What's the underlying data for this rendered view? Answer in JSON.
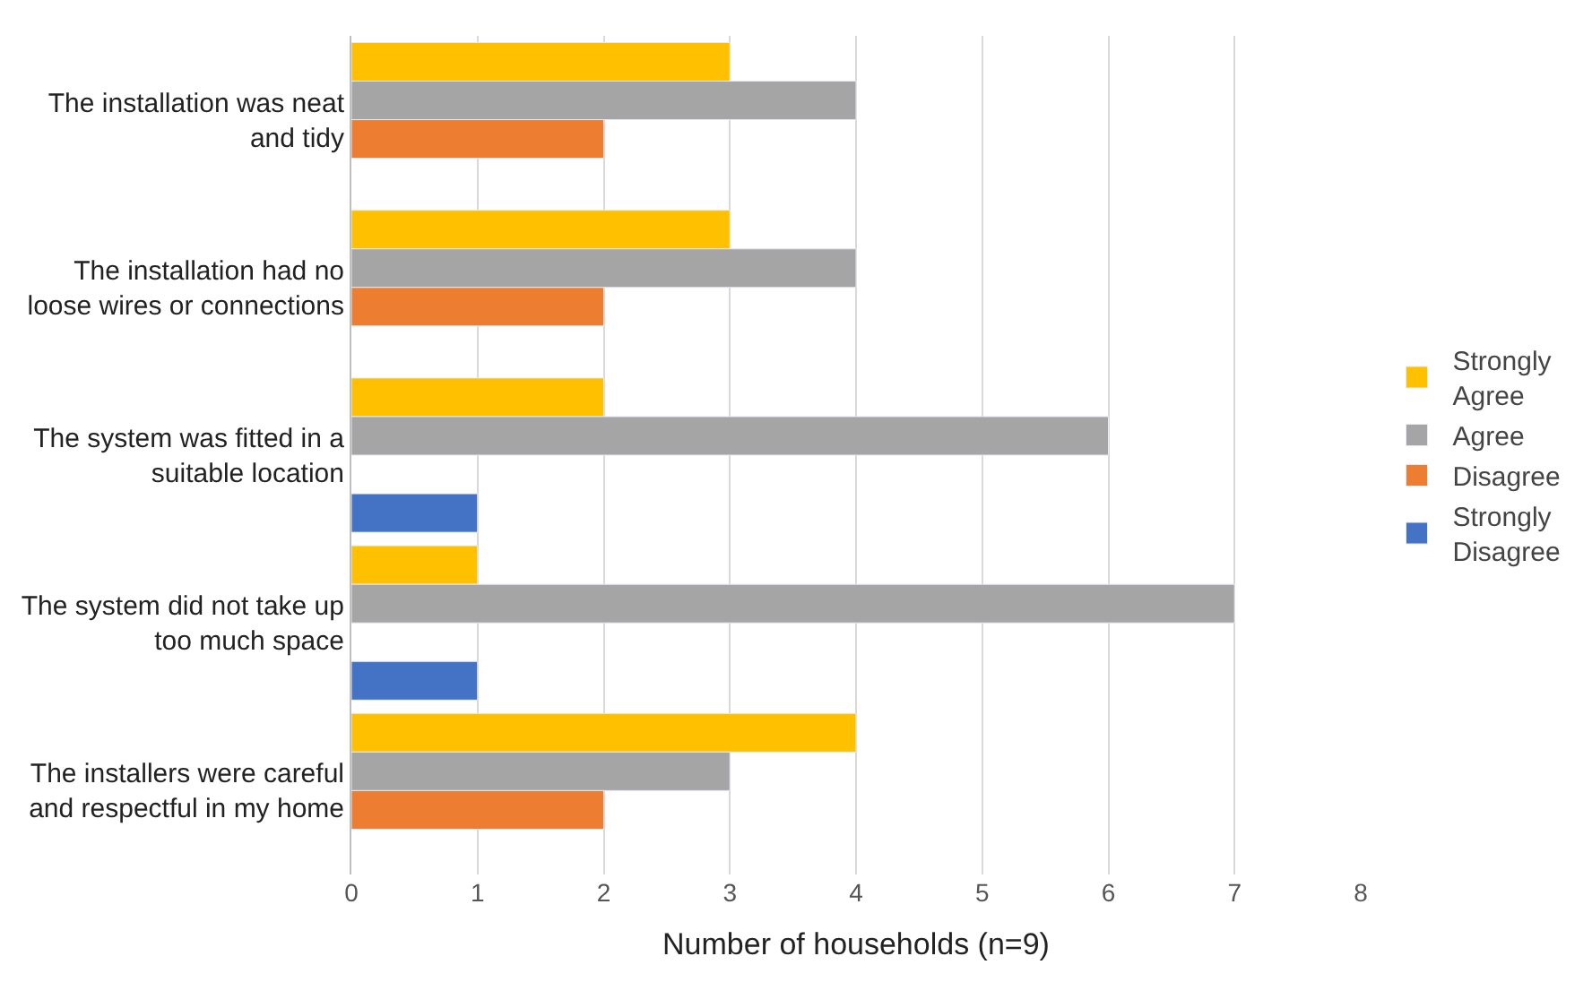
{
  "chart_data": {
    "type": "bar",
    "orientation": "horizontal",
    "xlabel": "Number of households (n=9)",
    "categories": [
      "The installation was neat and tidy",
      "The installation had no loose wires or connections",
      "The system was fitted in a suitable location",
      "The system did not take up too much space",
      "The installers were careful and respectful in my home"
    ],
    "series": [
      {
        "name": "Strongly Agree",
        "color": "#ffc000",
        "values": [
          3,
          3,
          2,
          1,
          4
        ]
      },
      {
        "name": "Agree",
        "color": "#a5a5a5",
        "values": [
          4,
          4,
          6,
          7,
          3
        ]
      },
      {
        "name": "Disagree",
        "color": "#ed7d31",
        "values": [
          2,
          2,
          null,
          null,
          2
        ]
      },
      {
        "name": "Strongly Disagree",
        "color": "#4472c4",
        "values": [
          null,
          null,
          1,
          1,
          null
        ]
      }
    ],
    "xlim": [
      0,
      8
    ],
    "xticks": [
      0,
      1,
      2,
      3,
      4,
      5,
      6,
      7,
      8
    ],
    "grid": "x",
    "legend": "right"
  }
}
